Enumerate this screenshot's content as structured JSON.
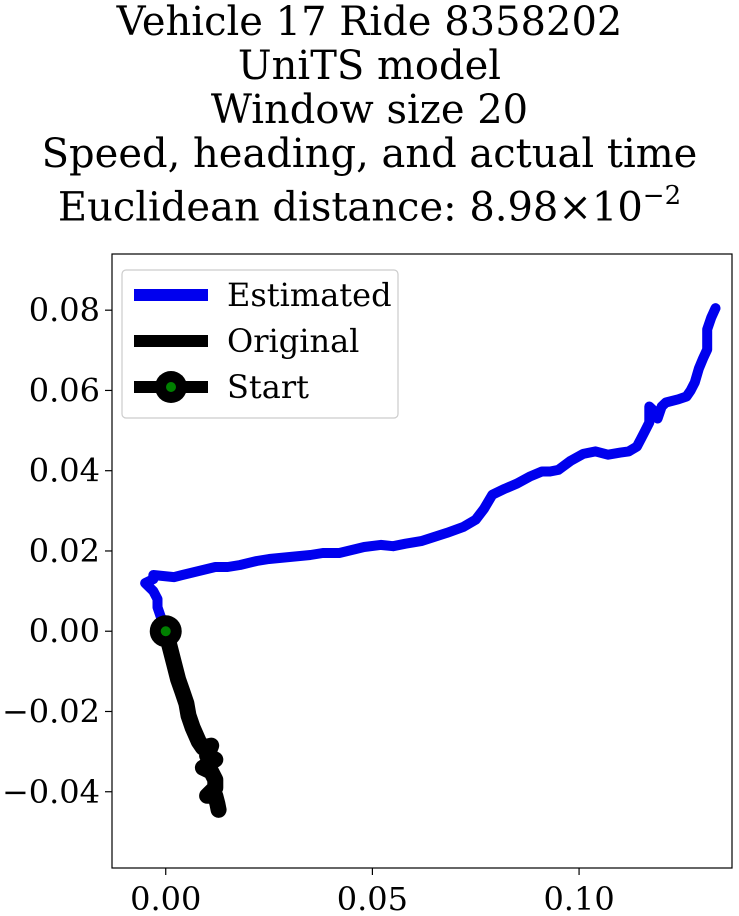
{
  "chart_data": {
    "type": "line",
    "title_lines": [
      "Vehicle 17 Ride 8358202",
      "UniTS model",
      "Window size 20",
      "Speed, heading, and actual time"
    ],
    "distance_label": "Euclidean distance: ",
    "distance_mantissa": "8.98",
    "distance_times": "×",
    "distance_base": "10",
    "distance_exponent": "−2",
    "xlabel": "",
    "ylabel": "",
    "xlim": [
      -0.013,
      0.137
    ],
    "ylim": [
      -0.059,
      0.094
    ],
    "xticks": [
      0.0,
      0.05,
      0.1
    ],
    "xtick_labels": [
      "0.00",
      "0.05",
      "0.10"
    ],
    "yticks": [
      -0.04,
      -0.02,
      0.0,
      0.02,
      0.04,
      0.06,
      0.08
    ],
    "ytick_labels": [
      "−0.04",
      "−0.02",
      "0.00",
      "0.02",
      "0.04",
      "0.06",
      "0.08"
    ],
    "legend_position": "top-left",
    "grid": false,
    "series": [
      {
        "name": "Estimated",
        "color": "#0000ee",
        "x": [
          0.0,
          -0.001,
          -0.002,
          -0.002,
          -0.003,
          -0.005,
          -0.003,
          -0.003,
          0.002,
          0.004,
          0.008,
          0.012,
          0.015,
          0.018,
          0.022,
          0.025,
          0.03,
          0.035,
          0.038,
          0.042,
          0.046,
          0.048,
          0.052,
          0.055,
          0.058,
          0.062,
          0.065,
          0.068,
          0.072,
          0.075,
          0.077,
          0.079,
          0.082,
          0.085,
          0.088,
          0.091,
          0.093,
          0.095,
          0.098,
          0.101,
          0.104,
          0.107,
          0.11,
          0.112,
          0.114,
          0.115,
          0.116,
          0.117,
          0.117,
          0.118,
          0.119,
          0.12,
          0.121,
          0.124,
          0.126,
          0.127,
          0.128,
          0.129,
          0.13,
          0.131,
          0.131,
          0.131,
          0.132,
          0.133
        ],
        "y": [
          0.001,
          0.003,
          0.006,
          0.008,
          0.01,
          0.012,
          0.013,
          0.014,
          0.0135,
          0.014,
          0.015,
          0.016,
          0.016,
          0.0165,
          0.0175,
          0.018,
          0.0185,
          0.019,
          0.0195,
          0.0195,
          0.0205,
          0.021,
          0.0215,
          0.0212,
          0.0218,
          0.0225,
          0.0235,
          0.0245,
          0.026,
          0.0278,
          0.0305,
          0.034,
          0.0355,
          0.0368,
          0.0385,
          0.0398,
          0.0398,
          0.0402,
          0.0425,
          0.0442,
          0.0448,
          0.044,
          0.0445,
          0.0448,
          0.046,
          0.048,
          0.05,
          0.052,
          0.056,
          0.055,
          0.053,
          0.056,
          0.057,
          0.0578,
          0.0585,
          0.06,
          0.062,
          0.0655,
          0.068,
          0.0702,
          0.073,
          0.0752,
          0.0782,
          0.0805
        ]
      },
      {
        "name": "Original",
        "color": "#000000",
        "x": [
          0.0,
          0.001,
          0.002,
          0.003,
          0.004,
          0.005,
          0.0055,
          0.0065,
          0.008,
          0.009,
          0.011,
          0.01,
          0.012,
          0.009,
          0.011,
          0.012,
          0.012,
          0.01,
          0.012,
          0.0125,
          0.0128
        ],
        "y": [
          0.0,
          -0.004,
          -0.008,
          -0.012,
          -0.015,
          -0.018,
          -0.021,
          -0.024,
          -0.0275,
          -0.029,
          -0.0285,
          -0.031,
          -0.032,
          -0.034,
          -0.035,
          -0.037,
          -0.039,
          -0.041,
          -0.041,
          -0.043,
          -0.0445
        ]
      }
    ],
    "start_point": {
      "name": "Start",
      "x": 0.0,
      "y": 0.0,
      "outer_color": "#000000",
      "inner_color": "#008000"
    }
  }
}
